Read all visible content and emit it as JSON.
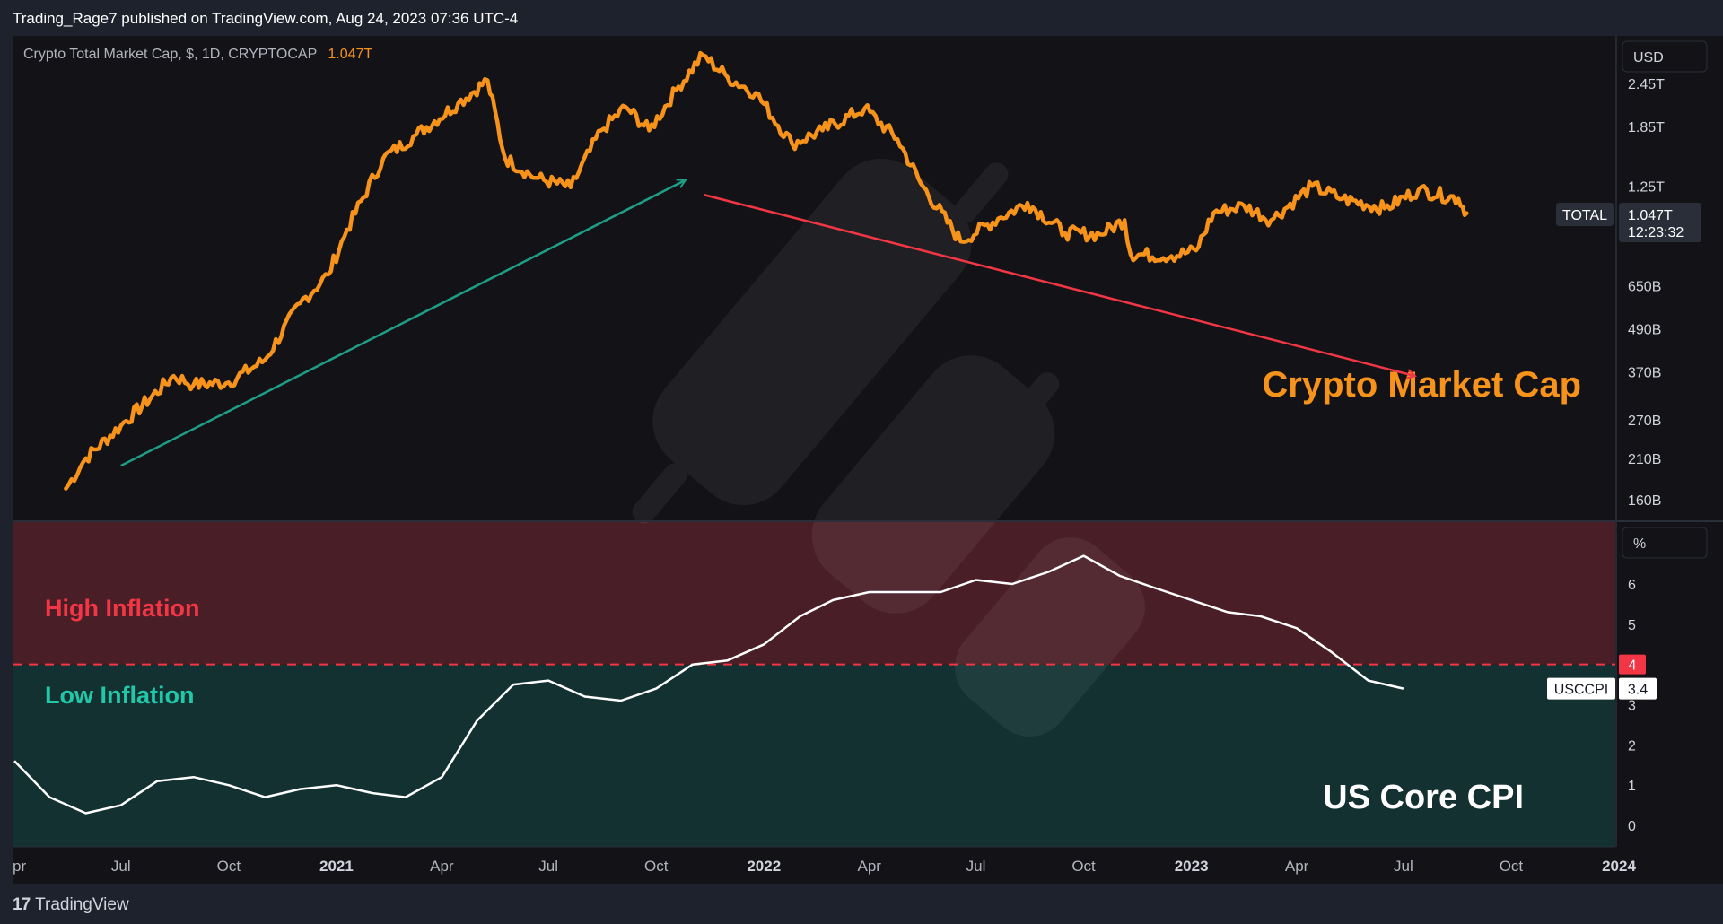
{
  "header": {
    "published": "Trading_Rage7 published on TradingView.com, Aug 24, 2023 07:36 UTC-4"
  },
  "footer": {
    "brand": "TradingView",
    "logo_icon": "tradingview-logo-icon"
  },
  "colors": {
    "background": "#131317",
    "chrome": "#1e222d",
    "price_line": "#f7931a",
    "cpi_line": "#ffffff",
    "high_zone": "#4a1e26",
    "low_zone": "#133131",
    "up_arrow": "#1e9e87",
    "down_arrow": "#f23645",
    "threshold": "#f23645"
  },
  "chart_data": [
    {
      "type": "line",
      "legend": "Crypto Total Market Cap, $, 1D, CRYPTOCAP",
      "last_value": "1.047T",
      "annotation": "Crypto Market Cap",
      "currency_label": "USD",
      "y_scale": "log",
      "yticks": [
        "2.45T",
        "1.85T",
        "1.25T",
        "650B",
        "490B",
        "370B",
        "270B",
        "210B",
        "160B"
      ],
      "ytick_values": [
        2450,
        1850,
        1250,
        650,
        490,
        370,
        270,
        210,
        160
      ],
      "badge": {
        "symbol": "TOTAL",
        "value": "1.047T",
        "countdown": "12:23:32"
      },
      "x": [
        "2020-05-15",
        "2020-06-01",
        "2020-07-01",
        "2020-08-15",
        "2020-09-01",
        "2020-10-01",
        "2020-11-01",
        "2020-12-01",
        "2020-12-25",
        "2021-01-10",
        "2021-02-10",
        "2021-03-10",
        "2021-04-15",
        "2021-05-10",
        "2021-05-25",
        "2021-06-20",
        "2021-07-20",
        "2021-08-15",
        "2021-09-05",
        "2021-09-25",
        "2021-10-20",
        "2021-11-10",
        "2021-12-01",
        "2021-12-25",
        "2022-01-25",
        "2022-02-20",
        "2022-03-28",
        "2022-04-25",
        "2022-05-15",
        "2022-06-18",
        "2022-07-20",
        "2022-08-14",
        "2022-09-15",
        "2022-10-15",
        "2022-11-05",
        "2022-11-10",
        "2022-12-15",
        "2023-01-05",
        "2023-01-20",
        "2023-02-15",
        "2023-03-10",
        "2023-04-14",
        "2023-05-10",
        "2023-06-15",
        "2023-07-14",
        "2023-08-17",
        "2023-08-24"
      ],
      "values": [
        172,
        210,
        260,
        360,
        340,
        345,
        400,
        580,
        700,
        940,
        1500,
        1750,
        2150,
        2500,
        1500,
        1320,
        1240,
        1800,
        2100,
        1800,
        2400,
        2950,
        2550,
        2300,
        1650,
        1800,
        2080,
        1700,
        1270,
        870,
        1010,
        1120,
        920,
        910,
        1000,
        800,
        790,
        820,
        1050,
        1100,
        1000,
        1250,
        1150,
        1080,
        1220,
        1150,
        1047
      ],
      "trend_arrows": [
        {
          "color": "up",
          "from": {
            "x": "2020-07-01",
            "y": 200
          },
          "to": {
            "x": "2021-10-26",
            "y": 1300
          }
        },
        {
          "color": "down",
          "from": {
            "x": "2021-11-11",
            "y": 1180
          },
          "to": {
            "x": "2023-07-11",
            "y": 360
          }
        }
      ]
    },
    {
      "type": "line",
      "annotation": "US Core CPI",
      "unit_label": "%",
      "series_symbol": "USCCPI",
      "last_value": "3.4",
      "threshold": 4,
      "threshold_label": "4",
      "zones": [
        {
          "label": "High Inflation",
          "above": 4
        },
        {
          "label": "Low Inflation",
          "below": 4
        }
      ],
      "yticks": [
        "6",
        "5",
        "3",
        "2",
        "1",
        "0"
      ],
      "ytick_values": [
        6,
        5,
        3,
        2,
        1,
        0
      ],
      "ylim": [
        -0.5,
        7.2
      ],
      "x": [
        "2020-04-01",
        "2020-05-01",
        "2020-06-01",
        "2020-07-01",
        "2020-08-01",
        "2020-09-01",
        "2020-10-01",
        "2020-11-01",
        "2020-12-01",
        "2021-01-01",
        "2021-02-01",
        "2021-03-01",
        "2021-04-01",
        "2021-05-01",
        "2021-06-01",
        "2021-07-01",
        "2021-08-01",
        "2021-09-01",
        "2021-10-01",
        "2021-11-01",
        "2021-12-01",
        "2022-01-01",
        "2022-02-01",
        "2022-03-01",
        "2022-04-01",
        "2022-05-01",
        "2022-06-01",
        "2022-07-01",
        "2022-08-01",
        "2022-09-01",
        "2022-10-01",
        "2022-11-01",
        "2022-12-01",
        "2023-01-01",
        "2023-02-01",
        "2023-03-01",
        "2023-04-01",
        "2023-05-01",
        "2023-06-01",
        "2023-07-01"
      ],
      "values": [
        1.6,
        0.7,
        0.3,
        0.5,
        1.1,
        1.2,
        1.0,
        0.7,
        0.9,
        1.0,
        0.8,
        0.7,
        1.2,
        2.6,
        3.5,
        3.6,
        3.2,
        3.1,
        3.4,
        4.0,
        4.1,
        4.5,
        5.2,
        5.6,
        5.8,
        5.8,
        5.8,
        6.1,
        6.0,
        6.3,
        6.7,
        6.2,
        5.9,
        5.6,
        5.3,
        5.2,
        4.9,
        4.3,
        3.6,
        3.4
      ]
    }
  ],
  "time_axis": [
    {
      "label": "pr",
      "x": "2020-04-01"
    },
    {
      "label": "Jul",
      "x": "2020-07-01"
    },
    {
      "label": "Oct",
      "x": "2020-10-01"
    },
    {
      "label": "2021",
      "x": "2021-01-01",
      "year": true
    },
    {
      "label": "Apr",
      "x": "2021-04-01"
    },
    {
      "label": "Jul",
      "x": "2021-07-01"
    },
    {
      "label": "Oct",
      "x": "2021-10-01"
    },
    {
      "label": "2022",
      "x": "2022-01-01",
      "year": true
    },
    {
      "label": "Apr",
      "x": "2022-04-01"
    },
    {
      "label": "Jul",
      "x": "2022-07-01"
    },
    {
      "label": "Oct",
      "x": "2022-10-01"
    },
    {
      "label": "2023",
      "x": "2023-01-01",
      "year": true
    },
    {
      "label": "Apr",
      "x": "2023-04-01"
    },
    {
      "label": "Jul",
      "x": "2023-07-01"
    },
    {
      "label": "Oct",
      "x": "2023-10-01"
    },
    {
      "label": "2024",
      "x": "2024-01-01",
      "year": true
    }
  ]
}
